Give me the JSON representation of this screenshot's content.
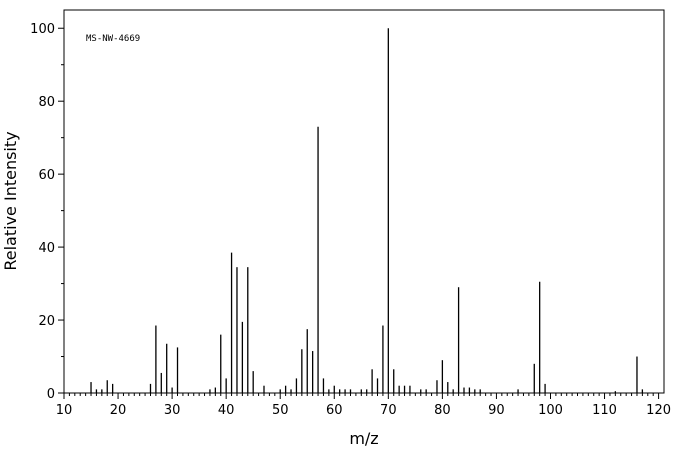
{
  "chart_data": {
    "type": "stick",
    "annotation": "MS-NW-4669",
    "x_label": "m/z",
    "y_label": "Relative Intensity",
    "x": [
      15,
      16,
      17,
      18,
      19,
      26,
      27,
      28,
      29,
      30,
      31,
      37,
      38,
      39,
      40,
      41,
      42,
      43,
      44,
      45,
      47,
      50,
      51,
      52,
      53,
      54,
      55,
      56,
      57,
      58,
      59,
      60,
      61,
      62,
      63,
      65,
      66,
      67,
      68,
      69,
      70,
      71,
      72,
      73,
      74,
      76,
      77,
      79,
      80,
      81,
      82,
      83,
      84,
      85,
      86,
      87,
      94,
      97,
      98,
      99,
      112,
      116,
      117
    ],
    "values": [
      3,
      1,
      1,
      3.5,
      2.5,
      2.5,
      18.5,
      5.5,
      13.5,
      1.5,
      12.5,
      1,
      1.5,
      16,
      4,
      38.5,
      34.5,
      19.5,
      34.5,
      6,
      2,
      1,
      2,
      1,
      4,
      12,
      17.5,
      11.5,
      73,
      4,
      1,
      2,
      1,
      1,
      1,
      1,
      1,
      6.5,
      4,
      18.5,
      100,
      6.5,
      2,
      2,
      2,
      1,
      1,
      3.5,
      9,
      3,
      1,
      29,
      1.5,
      1.5,
      1,
      1,
      1,
      8,
      30.5,
      2.5,
      0.5,
      10,
      1
    ],
    "color": "#000000",
    "xlim": [
      10,
      121
    ],
    "xticks": [
      10,
      20,
      30,
      40,
      50,
      60,
      70,
      80,
      90,
      100,
      110,
      120
    ],
    "ylim": [
      0,
      105
    ],
    "yticks": [
      0,
      20,
      40,
      60,
      80,
      100
    ]
  }
}
